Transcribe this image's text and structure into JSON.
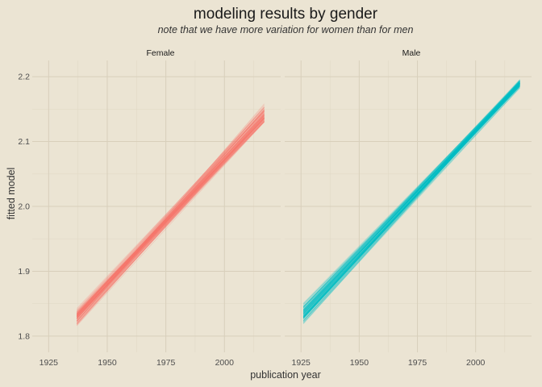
{
  "chart_data": {
    "type": "line",
    "title": "modeling results by gender",
    "subtitle": "note that we have more variation for women than for men",
    "xlabel": "publication year",
    "ylabel": "fitted model",
    "xlim": [
      1918,
      2024
    ],
    "ylim": [
      1.775,
      2.225
    ],
    "x_ticks": [
      1925,
      1950,
      1975,
      2000
    ],
    "y_ticks": [
      1.8,
      1.9,
      2.0,
      2.1,
      2.2
    ],
    "x_tick_labels": [
      "1925",
      "1950",
      "1975",
      "2000"
    ],
    "y_tick_labels": [
      "1.8",
      "1.9",
      "2.0",
      "2.1",
      "2.2"
    ],
    "grid": true,
    "legend": "none",
    "n_lines_per_panel": 100,
    "panels": [
      {
        "label": "Female",
        "color": "#f8766d",
        "x_range": [
          1937,
          2017
        ],
        "start_center": 1.828,
        "end_center": 2.14,
        "start_spread": 0.028,
        "end_spread": 0.028
      },
      {
        "label": "Male",
        "color": "#00bfc4",
        "x_range": [
          1926,
          2019
        ],
        "start_center": 1.835,
        "end_center": 2.19,
        "start_spread": 0.03,
        "end_spread": 0.012
      }
    ]
  }
}
